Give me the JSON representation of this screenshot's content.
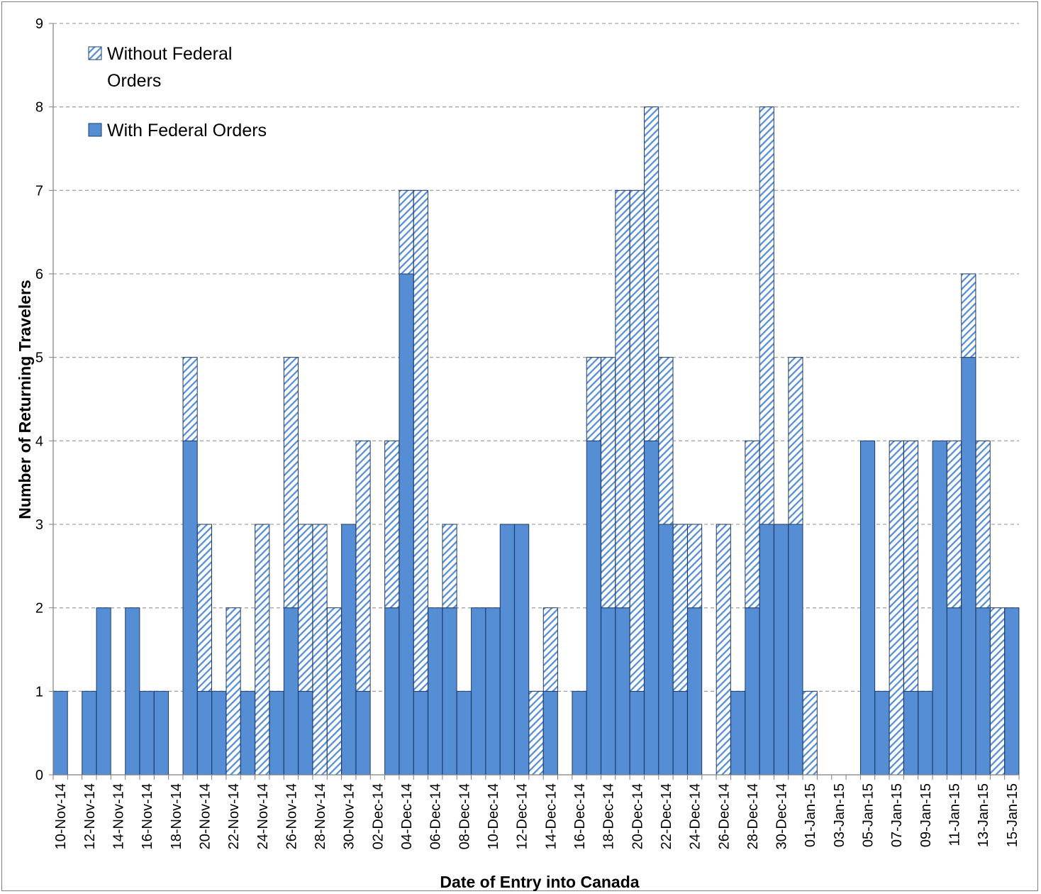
{
  "chart_data": {
    "type": "bar",
    "stacked": true,
    "title": "",
    "xlabel": "Date of Entry into Canada",
    "ylabel": "Number of Returning Travelers",
    "ylim": [
      0,
      9
    ],
    "yticks": [
      "0",
      "1",
      "2",
      "3",
      "4",
      "5",
      "6",
      "7",
      "8",
      "9"
    ],
    "grid": "horizontal dashed",
    "legend_position": "top-left",
    "colors": {
      "with": "#558ed5",
      "without_fill": "#ffffff",
      "without_stripe": "#558ed5",
      "bar_border": "#1f3b68",
      "grid": "#a6a6a6"
    },
    "categories": [
      "10-Nov-14",
      "11-Nov-14",
      "12-Nov-14",
      "13-Nov-14",
      "14-Nov-14",
      "15-Nov-14",
      "16-Nov-14",
      "17-Nov-14",
      "18-Nov-14",
      "19-Nov-14",
      "20-Nov-14",
      "21-Nov-14",
      "22-Nov-14",
      "23-Nov-14",
      "24-Nov-14",
      "25-Nov-14",
      "26-Nov-14",
      "27-Nov-14",
      "28-Nov-14",
      "29-Nov-14",
      "30-Nov-14",
      "01-Dec-14",
      "02-Dec-14",
      "03-Dec-14",
      "04-Dec-14",
      "05-Dec-14",
      "06-Dec-14",
      "07-Dec-14",
      "08-Dec-14",
      "09-Dec-14",
      "10-Dec-14",
      "11-Dec-14",
      "12-Dec-14",
      "13-Dec-14",
      "14-Dec-14",
      "15-Dec-14",
      "16-Dec-14",
      "17-Dec-14",
      "18-Dec-14",
      "19-Dec-14",
      "20-Dec-14",
      "21-Dec-14",
      "22-Dec-14",
      "23-Dec-14",
      "24-Dec-14",
      "25-Dec-14",
      "26-Dec-14",
      "27-Dec-14",
      "28-Dec-14",
      "29-Dec-14",
      "30-Dec-14",
      "31-Dec-14",
      "01-Jan-15",
      "02-Jan-15",
      "03-Jan-15",
      "04-Jan-15",
      "05-Jan-15",
      "06-Jan-15",
      "07-Jan-15",
      "08-Jan-15",
      "09-Jan-15",
      "10-Jan-15",
      "11-Jan-15",
      "12-Jan-15",
      "13-Jan-15",
      "14-Jan-15",
      "15-Jan-15"
    ],
    "tick_labels": [
      "10-Nov-14",
      "12-Nov-14",
      "14-Nov-14",
      "16-Nov-14",
      "18-Nov-14",
      "20-Nov-14",
      "22-Nov-14",
      "24-Nov-14",
      "26-Nov-14",
      "28-Nov-14",
      "30-Nov-14",
      "02-Dec-14",
      "04-Dec-14",
      "06-Dec-14",
      "08-Dec-14",
      "10-Dec-14",
      "12-Dec-14",
      "14-Dec-14",
      "16-Dec-14",
      "18-Dec-14",
      "20-Dec-14",
      "22-Dec-14",
      "24-Dec-14",
      "26-Dec-14",
      "28-Dec-14",
      "30-Dec-14",
      "01-Jan-15",
      "03-Jan-15",
      "05-Jan-15",
      "07-Jan-15",
      "09-Jan-15",
      "11-Jan-15",
      "13-Jan-15",
      "15-Jan-15"
    ],
    "series": [
      {
        "name": "With Federal Orders",
        "pattern": "solid",
        "values": [
          1,
          0,
          1,
          2,
          0,
          2,
          1,
          1,
          0,
          4,
          1,
          1,
          0,
          1,
          0,
          1,
          2,
          1,
          0,
          0,
          3,
          1,
          0,
          2,
          6,
          1,
          2,
          2,
          1,
          2,
          2,
          3,
          3,
          0,
          1,
          0,
          1,
          4,
          2,
          2,
          1,
          4,
          3,
          1,
          2,
          0,
          0,
          1,
          2,
          3,
          3,
          3,
          0,
          0,
          0,
          0,
          4,
          1,
          0,
          1,
          1,
          4,
          2,
          5,
          2,
          0,
          2
        ]
      },
      {
        "name": "Without Federal Orders",
        "pattern": "hatched",
        "values": [
          0,
          0,
          0,
          0,
          0,
          0,
          0,
          0,
          0,
          1,
          2,
          0,
          2,
          0,
          3,
          0,
          3,
          2,
          3,
          2,
          0,
          3,
          0,
          2,
          1,
          6,
          0,
          1,
          0,
          0,
          0,
          0,
          0,
          1,
          1,
          0,
          0,
          1,
          3,
          5,
          6,
          4,
          2,
          2,
          1,
          0,
          3,
          0,
          2,
          5,
          0,
          2,
          1,
          0,
          0,
          0,
          0,
          0,
          4,
          3,
          0,
          0,
          2,
          1,
          2,
          2,
          0
        ]
      }
    ]
  },
  "legend": {
    "without_line1": "Without Federal",
    "without_line2": "Orders",
    "with": "With Federal Orders"
  }
}
